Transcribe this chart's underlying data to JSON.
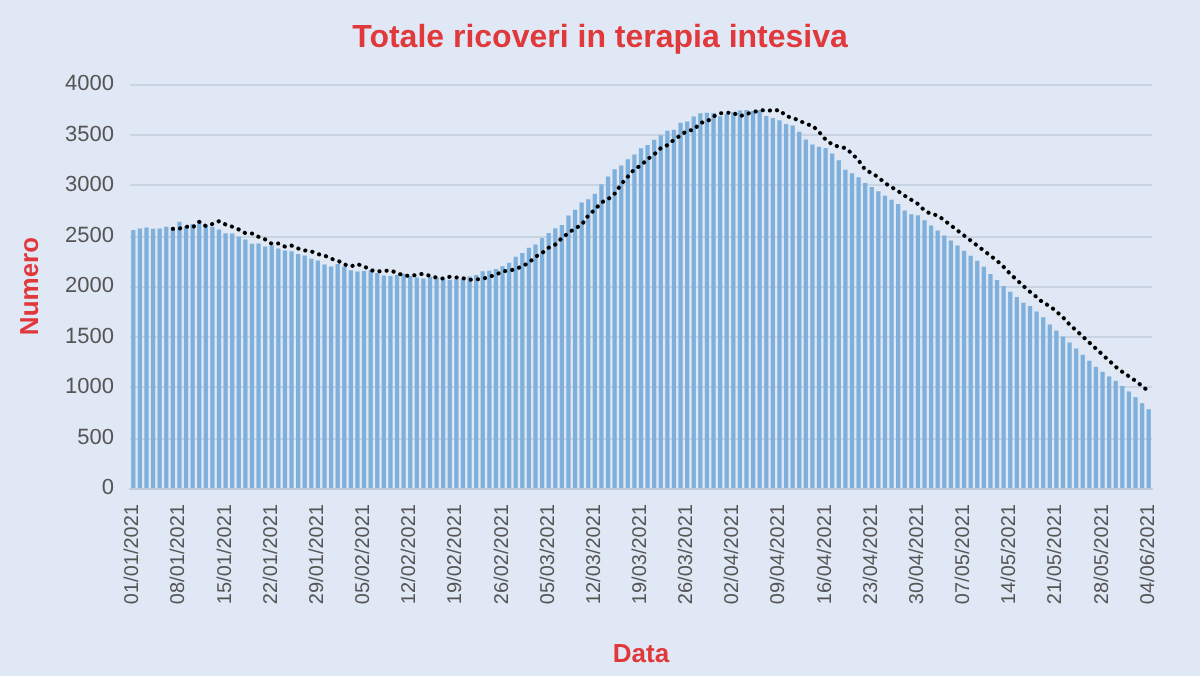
{
  "chart_data": {
    "type": "bar",
    "title": "Totale ricoveri in terapia intesiva",
    "xlabel": "Data",
    "ylabel": "Numero",
    "categories": [
      "01/01/2021",
      null,
      null,
      null,
      null,
      null,
      null,
      "08/01/2021",
      null,
      null,
      null,
      null,
      null,
      null,
      "15/01/2021",
      null,
      null,
      null,
      null,
      null,
      null,
      "22/01/2021",
      null,
      null,
      null,
      null,
      null,
      null,
      "29/01/2021",
      null,
      null,
      null,
      null,
      null,
      null,
      "05/02/2021",
      null,
      null,
      null,
      null,
      null,
      null,
      "12/02/2021",
      null,
      null,
      null,
      null,
      null,
      null,
      "19/02/2021",
      null,
      null,
      null,
      null,
      null,
      null,
      "26/02/2021",
      null,
      null,
      null,
      null,
      null,
      null,
      "05/03/2021",
      null,
      null,
      null,
      null,
      null,
      null,
      "12/03/2021",
      null,
      null,
      null,
      null,
      null,
      null,
      "19/03/2021",
      null,
      null,
      null,
      null,
      null,
      null,
      "26/03/2021",
      null,
      null,
      null,
      null,
      null,
      null,
      "02/04/2021",
      null,
      null,
      null,
      null,
      null,
      null,
      "09/04/2021",
      null,
      null,
      null,
      null,
      null,
      null,
      "16/04/2021",
      null,
      null,
      null,
      null,
      null,
      null,
      "23/04/2021",
      null,
      null,
      null,
      null,
      null,
      null,
      "30/04/2021",
      null,
      null,
      null,
      null,
      null,
      null,
      "07/05/2021",
      null,
      null,
      null,
      null,
      null,
      null,
      "14/05/2021",
      null,
      null,
      null,
      null,
      null,
      null,
      "21/05/2021",
      null,
      null,
      null,
      null,
      null,
      null,
      "28/05/2021",
      null,
      null,
      null,
      null,
      null,
      null,
      "04/06/2021"
    ],
    "series": [
      {
        "color": "#7fb0dc",
        "values": [
          2555,
          2569,
          2579,
          2566,
          2569,
          2587,
          2579,
          2636,
          2593,
          2614,
          2642,
          2609,
          2587,
          2560,
          2523,
          2520,
          2487,
          2461,
          2418,
          2421,
          2390,
          2400,
          2372,
          2352,
          2343,
          2316,
          2302,
          2270,
          2252,
          2214,
          2194,
          2217,
          2194,
          2157,
          2143,
          2149,
          2155,
          2128,
          2105,
          2098,
          2111,
          2121,
          2100,
          2083,
          2074,
          2091,
          2085,
          2077,
          2062,
          2067,
          2070,
          2093,
          2110,
          2146,
          2151,
          2168,
          2195,
          2231,
          2289,
          2327,
          2379,
          2411,
          2475,
          2525,
          2571,
          2605,
          2698,
          2756,
          2827,
          2859,
          2914,
          3007,
          3083,
          3157,
          3194,
          3256,
          3303,
          3364,
          3395,
          3448,
          3492,
          3537,
          3546,
          3616,
          3628,
          3679,
          3710,
          3716,
          3714,
          3681,
          3703,
          3721,
          3737,
          3743,
          3733,
          3743,
          3683,
          3663,
          3640,
          3603,
          3588,
          3526,
          3450,
          3402,
          3379,
          3366,
          3311,
          3244,
          3151,
          3117,
          3077,
          3019,
          2979,
          2939,
          2894,
          2853,
          2812,
          2748,
          2711,
          2700,
          2650,
          2600,
          2550,
          2500,
          2450,
          2400,
          2350,
          2300,
          2250,
          2190,
          2120,
          2060,
          2000,
          1943,
          1891,
          1833,
          1802,
          1748,
          1690,
          1619,
          1560,
          1500,
          1440,
          1380,
          1320,
          1260,
          1200,
          1150,
          1105,
          1061,
          1010,
          956,
          900,
          840,
          780
        ]
      },
      {
        "type": "line",
        "color": "#000000",
        "line_style": "dotted",
        "marker": "none",
        "values": [
          null,
          null,
          null,
          null,
          null,
          null,
          2566,
          2569,
          2587,
          2579,
          2636,
          2593,
          2614,
          2642,
          2609,
          2587,
          2560,
          2523,
          2520,
          2487,
          2461,
          2418,
          2421,
          2390,
          2400,
          2372,
          2352,
          2343,
          2316,
          2302,
          2270,
          2252,
          2214,
          2194,
          2217,
          2194,
          2157,
          2143,
          2149,
          2155,
          2128,
          2105,
          2098,
          2111,
          2121,
          2100,
          2083,
          2074,
          2091,
          2085,
          2077,
          2062,
          2067,
          2070,
          2093,
          2110,
          2146,
          2151,
          2168,
          2195,
          2231,
          2289,
          2327,
          2379,
          2411,
          2475,
          2525,
          2571,
          2605,
          2698,
          2756,
          2827,
          2859,
          2914,
          3007,
          3083,
          3157,
          3194,
          3256,
          3303,
          3364,
          3395,
          3448,
          3492,
          3537,
          3546,
          3616,
          3628,
          3679,
          3710,
          3716,
          3714,
          3681,
          3703,
          3721,
          3737,
          3743,
          3733,
          3743,
          3683,
          3663,
          3640,
          3603,
          3588,
          3526,
          3450,
          3402,
          3379,
          3366,
          3311,
          3244,
          3151,
          3117,
          3077,
          3019,
          2979,
          2939,
          2894,
          2853,
          2812,
          2748,
          2711,
          2700,
          2650,
          2600,
          2550,
          2500,
          2450,
          2400,
          2350,
          2300,
          2250,
          2190,
          2120,
          2060,
          2000,
          1943,
          1891,
          1833,
          1802,
          1748,
          1690,
          1619,
          1560,
          1500,
          1440,
          1380,
          1320,
          1260,
          1200,
          1150,
          1105,
          1061,
          1010,
          956
        ]
      }
    ],
    "ylim": [
      0,
      4000
    ],
    "yticks": [
      0,
      500,
      1000,
      1500,
      2000,
      2500,
      3000,
      3500,
      4000
    ],
    "grid": "y"
  }
}
